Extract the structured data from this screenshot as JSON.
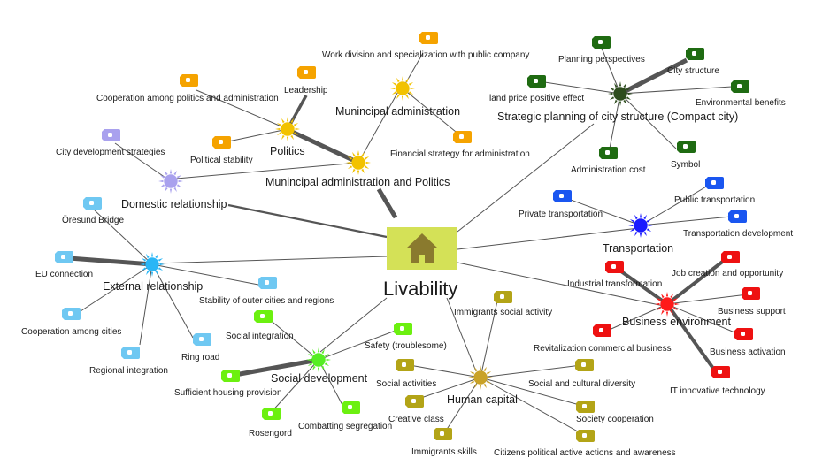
{
  "center": {
    "label": "Livability",
    "icon": "house-icon",
    "box_color": "#d4e157",
    "icon_color": "#8a7a2e"
  },
  "categories": [
    {
      "id": "mun-adm",
      "label": "Munincipal administration",
      "color": "#f2c200",
      "icon": "sun-icon",
      "leaves": [
        "Work division and specialization with public company",
        "Financial strategy for administration",
        "Leadership"
      ]
    },
    {
      "id": "politics",
      "label": "Politics",
      "color": "#f2c200",
      "icon": "sun-icon",
      "leaves": [
        "Cooperation among politics and administration",
        "Political stability"
      ]
    },
    {
      "id": "mun-pol",
      "label": "Munincipal administration and Politics",
      "color": "#f2c200",
      "icon": "sun-icon",
      "leaves": []
    },
    {
      "id": "domestic",
      "label": "Domestic relationship",
      "color": "#a9a1ee",
      "icon": "sun-icon",
      "leaves": [
        "City development strategies"
      ]
    },
    {
      "id": "external",
      "label": "External relationship",
      "color": "#29b6f6",
      "icon": "sun-icon",
      "leaves": [
        "Öresund Bridge",
        "EU connection",
        "Cooperation among cities",
        "Regional integration",
        "Ring road",
        "Stability of outer cities and regions"
      ]
    },
    {
      "id": "strategic",
      "label": "Strategic planning of city structure (Compact city)",
      "color": "#2e4d1e",
      "icon": "sun-icon",
      "leaves": [
        "Planning perspectives",
        "City structure",
        "land price positive effect",
        "Environmental benefits",
        "Administration cost",
        "Symbol"
      ]
    },
    {
      "id": "transport",
      "label": "Transportation",
      "color": "#1a1aff",
      "icon": "sun-icon",
      "leaves": [
        "Private transportation",
        "Public transportation",
        "Transportation development"
      ]
    },
    {
      "id": "business",
      "label": "Business  environment",
      "color": "#ff1a1a",
      "icon": "sun-icon",
      "leaves": [
        "Industrial transformation",
        "Job creation and opportunity",
        "Business support",
        "Revitalization commercial business",
        "Business activation",
        "IT innovative technology"
      ]
    },
    {
      "id": "human",
      "label": "Human capital",
      "color": "#c9a227",
      "icon": "sun-icon",
      "leaves": [
        "Immigrants social activity",
        "Social activities",
        "Social and cultural diversity",
        "Creative class",
        "Society cooperation",
        "Immigrants skills",
        "Citizens political active actions and awareness"
      ]
    },
    {
      "id": "social",
      "label": "Social development",
      "color": "#55ee22",
      "icon": "sun-icon",
      "leaves": [
        "Social integration",
        "Safety (troublesome)",
        "Sufficient housing provision",
        "Rosengord",
        "Combatting segregation"
      ]
    }
  ],
  "tag_colors": {
    "yellow": "#f5a300",
    "purple": "#a9a1ee",
    "lightblue": "#6fc8f2",
    "darkgreen": "#1f6b12",
    "blue": "#1a56f0",
    "red": "#ee1111",
    "olive": "#b3a417",
    "green": "#6cf010"
  },
  "tag_icon": "tag-icon"
}
